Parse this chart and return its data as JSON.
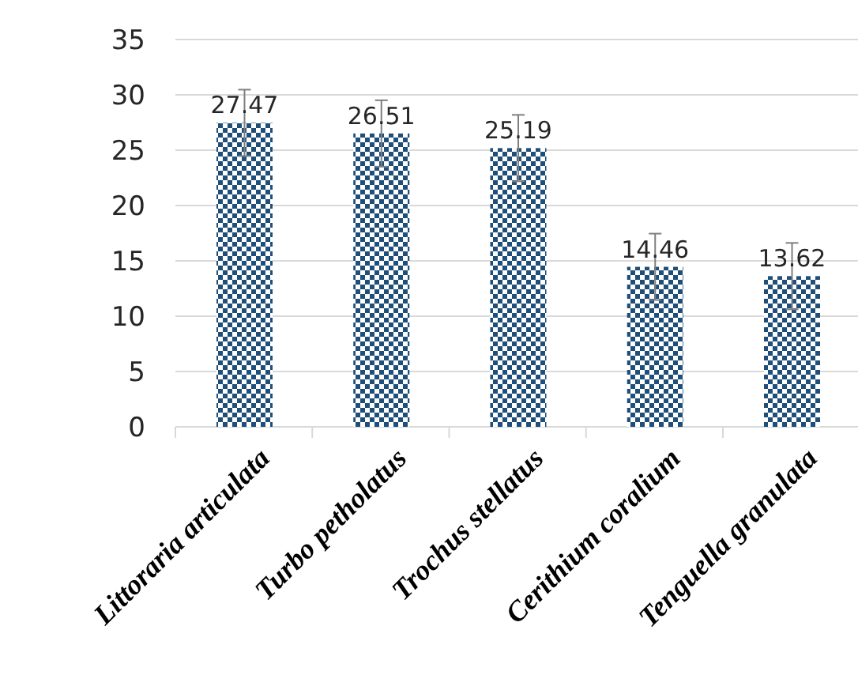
{
  "chart_data": {
    "type": "bar",
    "categories": [
      "Littoraria articulata",
      "Turbo petholatus",
      "Trochus stellatus",
      "Cerithium coralium",
      "Tenguella granulata"
    ],
    "values": [
      27.47,
      26.51,
      25.19,
      14.46,
      13.62
    ],
    "errors": [
      3,
      3,
      3,
      3,
      3
    ],
    "color": "#1f4e79",
    "ylim": [
      0,
      35
    ],
    "yticks": [
      0,
      5,
      10,
      15,
      20,
      25,
      30,
      35
    ],
    "grid": "y",
    "data_labels": true
  }
}
